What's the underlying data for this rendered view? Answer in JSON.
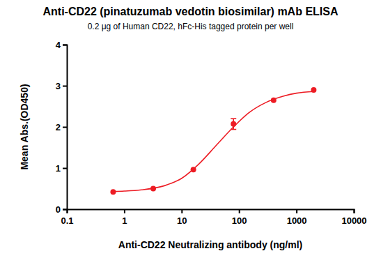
{
  "chart_data": {
    "type": "scatter",
    "title": "Anti-CD22 (pinatuzumab vedotin biosimilar) mAb ELISA",
    "subtitle": "0.2 μg of Human CD22, hFc-His tagged protein per well",
    "x_label": "Anti-CD22 Neutralizing antibody (ng/ml)",
    "y_label": "Mean Abs.(OD450)",
    "x": [
      0.64,
      3.2,
      16,
      80,
      400,
      2000
    ],
    "values": [
      0.42,
      0.5,
      0.96,
      2.07,
      2.65,
      2.9
    ],
    "errors": [
      0,
      0,
      0,
      0.13,
      0,
      0
    ],
    "curve": {
      "x": [
        0.64,
        1,
        2,
        5,
        10,
        20,
        40,
        80,
        150,
        300,
        600,
        1000,
        2000
      ],
      "values": [
        0.43,
        0.44,
        0.47,
        0.57,
        0.75,
        1.1,
        1.55,
        2.0,
        2.35,
        2.6,
        2.75,
        2.82,
        2.86
      ]
    },
    "color": "#ed1c24",
    "marker": "circle",
    "line_style": "solid",
    "log": "x",
    "grid": false,
    "xlim": [
      0.1,
      10000
    ],
    "xticks": [
      0.1,
      1,
      10,
      100,
      1000,
      10000
    ],
    "ylim": [
      0,
      4
    ],
    "yticks": [
      0,
      1,
      2,
      3,
      4
    ]
  }
}
